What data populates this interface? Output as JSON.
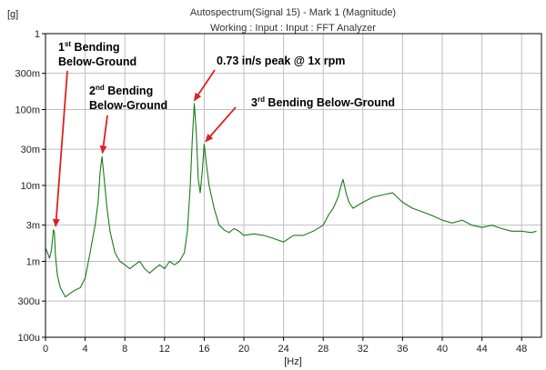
{
  "chart_data": {
    "type": "line",
    "title_line1": "Autospectrum(Signal 15) - Mark 1 (Magnitude)",
    "title_line2": "Working : Input : Input : FFT Analyzer",
    "ylabel": "[g]",
    "xlabel": "[Hz]",
    "yscale": "log",
    "xlim": [
      0,
      50
    ],
    "ylim": [
      0.0001,
      1
    ],
    "grid": true,
    "x_ticks": [
      0,
      4,
      8,
      12,
      16,
      20,
      24,
      28,
      32,
      36,
      40,
      44,
      48
    ],
    "x_tick_labels": [
      "0",
      "4",
      "8",
      "12",
      "16",
      "20",
      "24",
      "28",
      "32",
      "36",
      "40",
      "44",
      "48"
    ],
    "y_ticks": [
      1,
      0.3,
      0.1,
      0.03,
      0.01,
      0.003,
      0.001,
      0.0003,
      0.0001
    ],
    "y_tick_labels": [
      "1",
      "300m",
      "100m",
      "30m",
      "10m",
      "3m",
      "1m",
      "300u",
      "100u"
    ],
    "colors": {
      "series": "#1a7a1a",
      "grid": "#bfbfbf",
      "arrow": "#e02020",
      "frame": "#000000"
    },
    "series": [
      {
        "x": [
          0,
          0.2,
          0.4,
          0.6,
          0.8,
          0.9,
          1.0,
          1.2,
          1.5,
          2.0,
          2.5,
          3.0,
          3.5,
          4.0,
          4.5,
          5.0,
          5.3,
          5.5,
          5.7,
          5.9,
          6.2,
          6.5,
          7.0,
          7.5,
          8.0,
          8.5,
          9.0,
          9.5,
          10.0,
          10.5,
          11.0,
          11.5,
          12.0,
          12.5,
          13.0,
          13.5,
          14.0,
          14.3,
          14.6,
          14.8,
          15.0,
          15.2,
          15.4,
          15.6,
          15.8,
          16.0,
          16.2,
          16.5,
          17.0,
          17.5,
          18.0,
          18.5,
          19.0,
          19.5,
          20.0,
          21,
          22,
          23,
          24,
          25,
          26,
          27,
          28,
          28.5,
          29.0,
          29.5,
          29.8,
          30.0,
          30.3,
          30.6,
          31.0,
          32,
          33,
          34,
          35,
          36,
          37,
          38,
          39,
          40,
          41,
          42,
          43,
          44,
          45,
          46,
          47,
          48,
          49,
          49.5
        ],
        "values": [
          0.0015,
          0.0013,
          0.0011,
          0.0014,
          0.0026,
          0.0024,
          0.0012,
          0.00065,
          0.00045,
          0.00034,
          0.00038,
          0.00042,
          0.00045,
          0.0006,
          0.0013,
          0.003,
          0.006,
          0.015,
          0.024,
          0.013,
          0.005,
          0.0025,
          0.0013,
          0.001,
          0.0009,
          0.0008,
          0.0009,
          0.001,
          0.0008,
          0.0007,
          0.0008,
          0.0009,
          0.0008,
          0.001,
          0.0009,
          0.001,
          0.0013,
          0.0025,
          0.01,
          0.04,
          0.12,
          0.05,
          0.012,
          0.008,
          0.015,
          0.035,
          0.02,
          0.01,
          0.005,
          0.003,
          0.0026,
          0.0024,
          0.0027,
          0.0025,
          0.0022,
          0.0023,
          0.0022,
          0.002,
          0.0018,
          0.0022,
          0.0022,
          0.0025,
          0.003,
          0.004,
          0.005,
          0.007,
          0.01,
          0.012,
          0.008,
          0.006,
          0.005,
          0.006,
          0.007,
          0.0075,
          0.008,
          0.006,
          0.005,
          0.0045,
          0.004,
          0.0035,
          0.0032,
          0.0035,
          0.003,
          0.0028,
          0.003,
          0.0027,
          0.0025,
          0.0025,
          0.0024,
          0.0025
        ]
      }
    ],
    "annotations": [
      {
        "lines": [
          [
            "1",
            "st",
            " Bending"
          ],
          [
            "Below-Ground"
          ]
        ],
        "x": 1.0,
        "y": 0.0026
      },
      {
        "lines": [
          [
            "2",
            "nd",
            " Bending"
          ],
          [
            "Below-Ground"
          ]
        ],
        "x": 5.7,
        "y": 0.024
      },
      {
        "lines": [
          [
            "0.73 in/s peak @ 1x rpm"
          ]
        ],
        "x": 14.8,
        "y": 0.12
      },
      {
        "lines": [
          [
            "3",
            "rd",
            " Bending Below-Ground"
          ]
        ],
        "x": 15.9,
        "y": 0.035
      }
    ]
  }
}
